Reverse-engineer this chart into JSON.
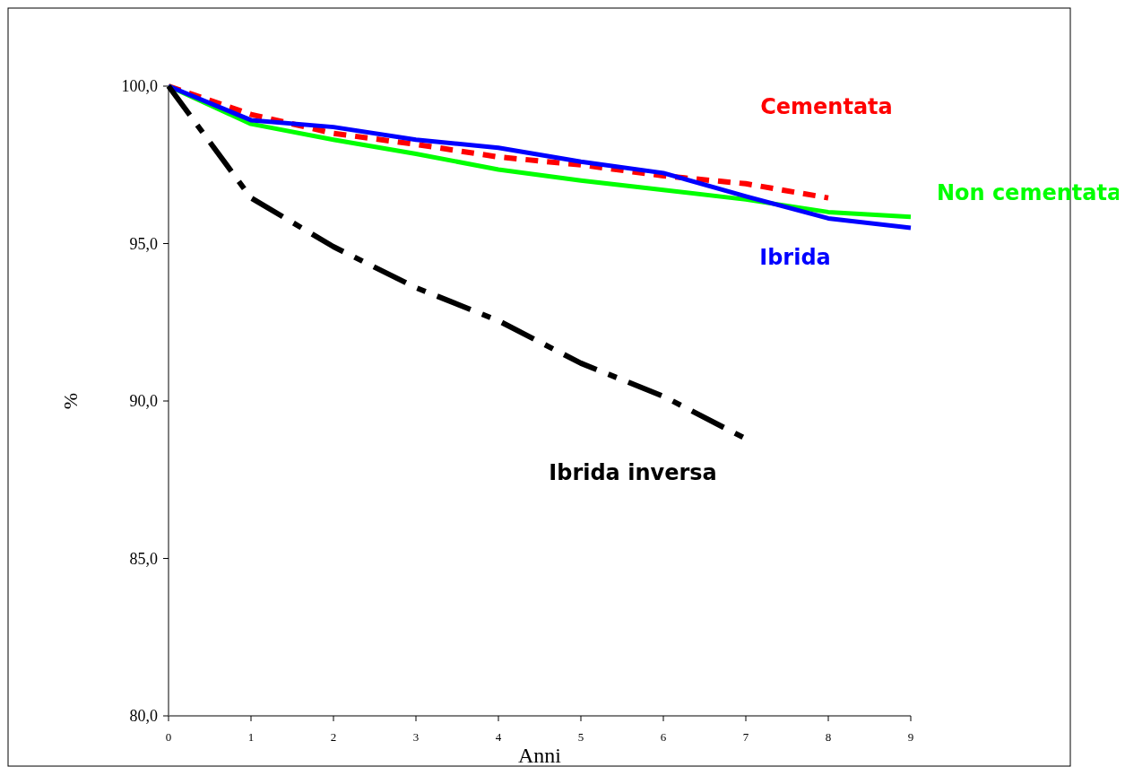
{
  "chart_data": {
    "type": "line",
    "xlabel": "Anni",
    "ylabel": "%",
    "xlim": [
      0,
      9
    ],
    "xticks": [
      0,
      1,
      2,
      3,
      4,
      5,
      6,
      7,
      8,
      9
    ],
    "ylim": [
      80,
      100
    ],
    "yticks": [
      {
        "value": 80,
        "label": "80,0"
      },
      {
        "value": 85,
        "label": "85,0"
      },
      {
        "value": 90,
        "label": "90,0"
      },
      {
        "value": 95,
        "label": "95,0"
      },
      {
        "value": 100,
        "label": "100,0"
      }
    ],
    "grid": false,
    "legend": false,
    "marker": "none",
    "series": [
      {
        "name": "Cementata",
        "color": "#ff0000",
        "line_style": "dashed",
        "x": [
          0,
          1,
          2,
          3,
          4,
          5,
          6,
          7,
          8
        ],
        "values": [
          100,
          99.1,
          98.5,
          98.15,
          97.75,
          97.5,
          97.15,
          96.9,
          96.45
        ]
      },
      {
        "name": "Non cementata",
        "color": "#00ff00",
        "line_style": "solid",
        "x": [
          0,
          1,
          2,
          3,
          4,
          5,
          6,
          7,
          8,
          9
        ],
        "values": [
          100,
          98.8,
          98.3,
          97.85,
          97.35,
          97.0,
          96.7,
          96.4,
          96.0,
          95.85
        ]
      },
      {
        "name": "Ibrida",
        "color": "#0000ff",
        "line_style": "solid",
        "x": [
          0,
          1,
          2,
          3,
          4,
          5,
          6,
          7,
          8,
          9
        ],
        "values": [
          100,
          98.92,
          98.7,
          98.3,
          98.04,
          97.6,
          97.24,
          96.5,
          95.8,
          95.5
        ]
      },
      {
        "name": "Ibrida inversa",
        "color": "#000000",
        "line_style": "dashdot",
        "x": [
          0,
          1,
          2,
          3,
          4,
          5,
          6,
          7
        ],
        "values": [
          100,
          96.45,
          94.9,
          93.6,
          92.55,
          91.2,
          90.15,
          88.8
        ]
      }
    ]
  }
}
